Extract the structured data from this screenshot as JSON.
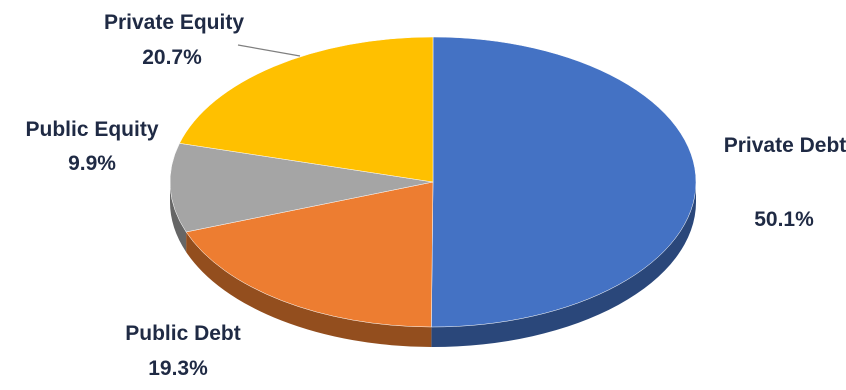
{
  "chart_data": {
    "type": "pie",
    "style": "3d",
    "title": "",
    "slices": [
      {
        "label": "Private Debt",
        "value": 50.1,
        "value_text": "50.1%",
        "color": "#4472C4"
      },
      {
        "label": "Public Debt",
        "value": 19.3,
        "value_text": "19.3%",
        "color": "#ED7D31"
      },
      {
        "label": "Public Equity",
        "value": 9.9,
        "value_text": "9.9%",
        "color": "#A5A5A5"
      },
      {
        "label": "Private Equity",
        "value": 20.7,
        "value_text": "20.7%",
        "color": "#FFC000"
      }
    ],
    "legend": "none",
    "data_labels": "outside"
  }
}
